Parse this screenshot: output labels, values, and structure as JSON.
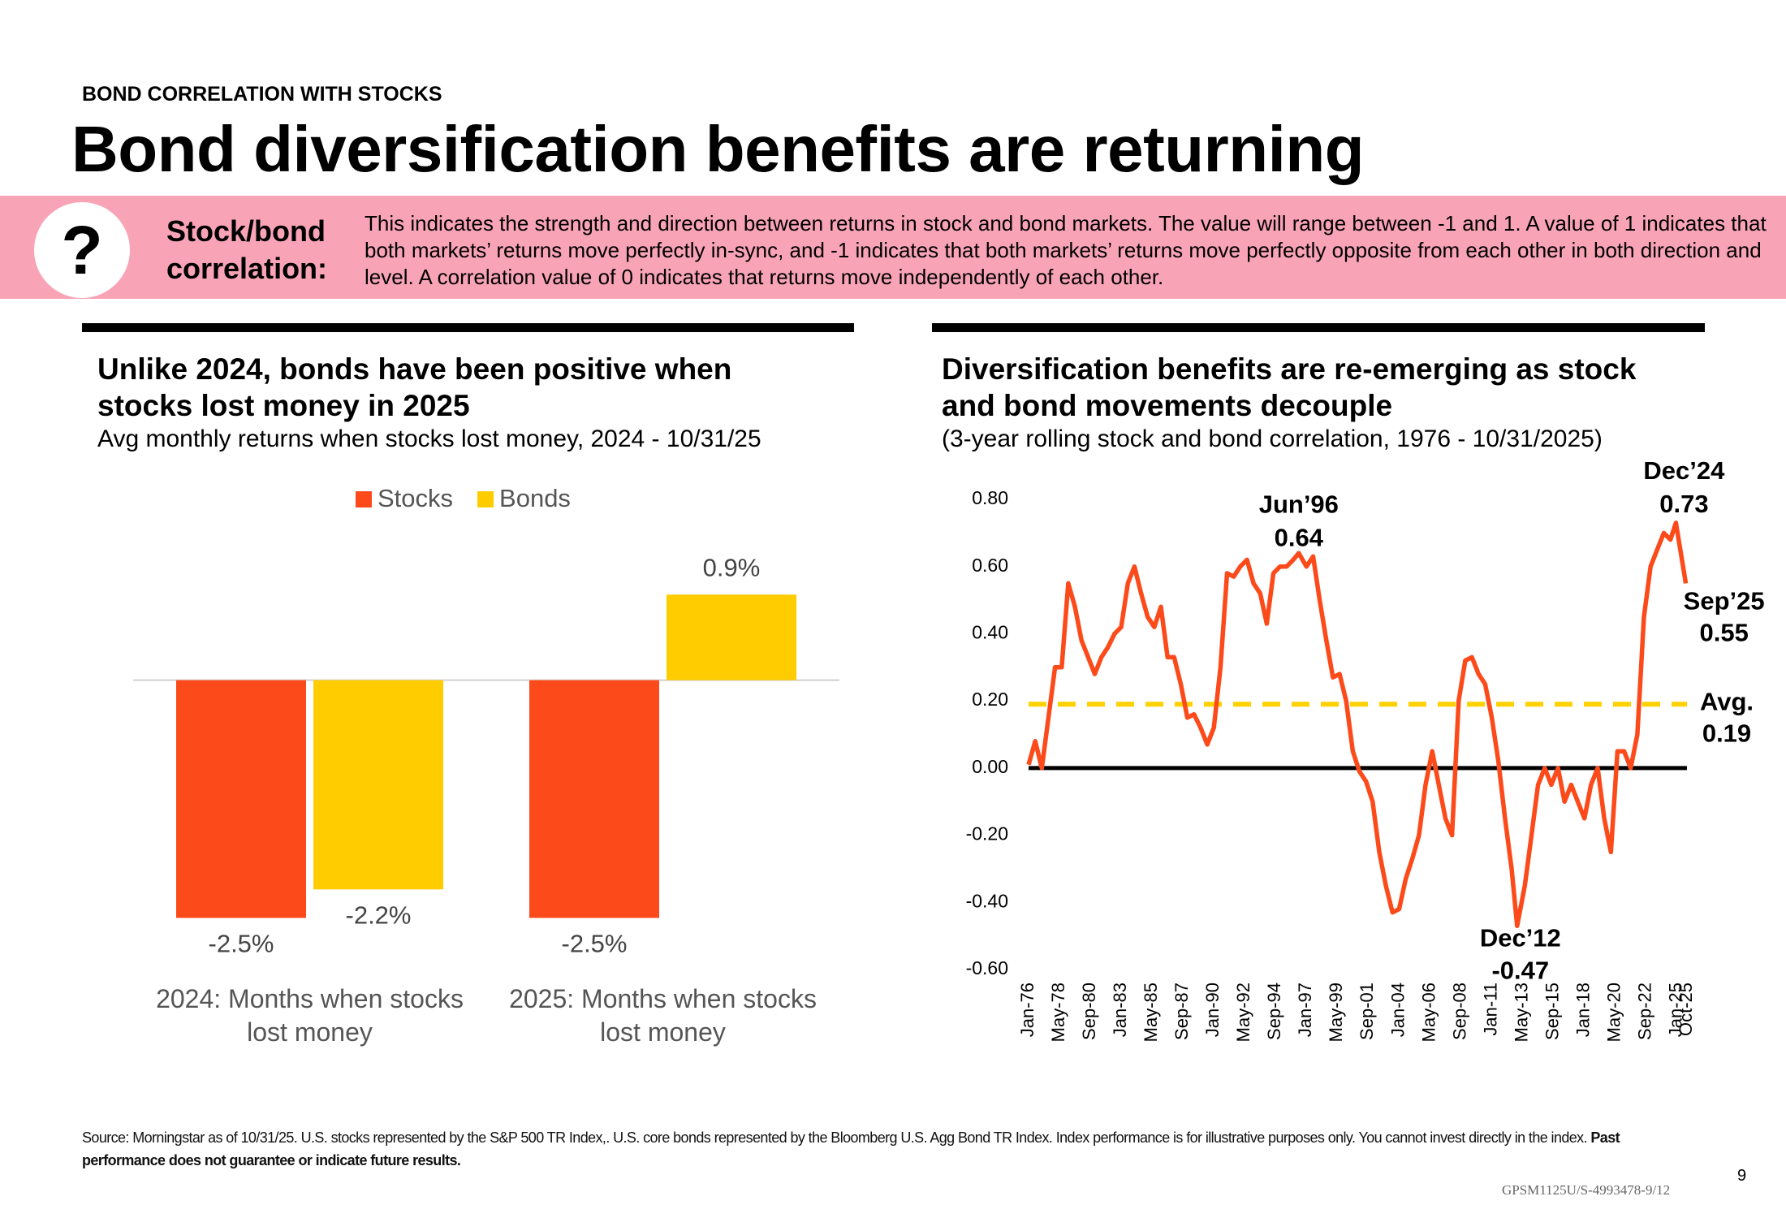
{
  "header": {
    "kicker": "BOND CORRELATION WITH STOCKS",
    "title": "Bond diversification benefits are returning"
  },
  "callout": {
    "icon": "?",
    "term": "Stock/bond correlation:",
    "text": "This indicates the strength and direction between returns in stock and bond markets. The value will range between -1 and 1. A value of 1 indicates that both markets’ returns move perfectly in-sync, and -1 indicates that both markets’ returns move perfectly opposite from each other in both direction and level. A correlation value of 0 indicates that returns move independently of each other."
  },
  "chart_data": [
    {
      "type": "bar",
      "title": "Unlike 2024, bonds have been positive when stocks lost money in 2025",
      "subtitle": "Avg monthly returns when stocks lost money, 2024 - 10/31/25",
      "categories": [
        "2024: Months when stocks lost money",
        "2025: Months when stocks lost money"
      ],
      "series": [
        {
          "name": "Stocks",
          "color": "#fc4a1a",
          "values": [
            -2.5,
            -2.5
          ],
          "value_labels": [
            "-2.5%",
            "-2.5%"
          ]
        },
        {
          "name": "Bonds",
          "color": "#ffcc00",
          "values": [
            -2.2,
            0.9
          ],
          "value_labels": [
            "-2.2%",
            "0.9%"
          ]
        }
      ],
      "ylim": [
        -3,
        1.5
      ]
    },
    {
      "type": "line",
      "title": "Diversification benefits are re-emerging as stock and bond movements decouple",
      "subtitle": "(3-year rolling stock and bond correlation, 1976 - 10/31/2025)",
      "color": "#fc4a1a",
      "x": [
        "Jan-76",
        "Jul-76",
        "Jan-77",
        "Jul-77",
        "Jan-78",
        "Jul-78",
        "Jan-79",
        "Jul-79",
        "Jan-80",
        "Jul-80",
        "Jan-81",
        "Jul-81",
        "Jan-82",
        "Jul-82",
        "Jan-83",
        "Jul-83",
        "Jan-84",
        "Jul-84",
        "Jan-85",
        "Jul-85",
        "Jan-86",
        "Jul-86",
        "Jan-87",
        "Jul-87",
        "Jan-88",
        "Jul-88",
        "Jan-89",
        "Jul-89",
        "Jan-90",
        "Jul-90",
        "Jan-91",
        "Jul-91",
        "Jan-92",
        "Jul-92",
        "Jan-93",
        "Jul-93",
        "Jan-94",
        "Jul-94",
        "Jan-95",
        "Jul-95",
        "Jan-96",
        "Jun-96",
        "Jan-97",
        "Jul-97",
        "Jan-98",
        "Jul-98",
        "Jan-99",
        "Jul-99",
        "Jan-00",
        "Jul-00",
        "Jan-01",
        "Jul-01",
        "Jan-02",
        "Jul-02",
        "Jan-03",
        "Jul-03",
        "Jan-04",
        "Jul-04",
        "Jan-05",
        "Jul-05",
        "Jan-06",
        "Jul-06",
        "Jan-07",
        "Jul-07",
        "Jan-08",
        "Jul-08",
        "Jan-09",
        "Jul-09",
        "Jan-10",
        "Jul-10",
        "Jan-11",
        "Jul-11",
        "Jan-12",
        "Jul-12",
        "Dec-12",
        "Jul-13",
        "Jan-14",
        "Jul-14",
        "Jan-15",
        "Jul-15",
        "Jan-16",
        "Jul-16",
        "Jan-17",
        "Jul-17",
        "Jan-18",
        "Jul-18",
        "Jan-19",
        "Jul-19",
        "Jan-20",
        "Jul-20",
        "Jan-21",
        "Jul-21",
        "Jan-22",
        "Jul-22",
        "Jan-23",
        "Jul-23",
        "Jan-24",
        "Jul-24",
        "Dec-24",
        "Sep-25"
      ],
      "values": [
        0.01,
        0.08,
        0.0,
        0.15,
        0.3,
        0.3,
        0.55,
        0.48,
        0.38,
        0.33,
        0.28,
        0.33,
        0.36,
        0.4,
        0.42,
        0.55,
        0.6,
        0.52,
        0.45,
        0.42,
        0.48,
        0.33,
        0.33,
        0.25,
        0.15,
        0.16,
        0.12,
        0.07,
        0.12,
        0.3,
        0.58,
        0.57,
        0.6,
        0.62,
        0.55,
        0.52,
        0.43,
        0.58,
        0.6,
        0.6,
        0.62,
        0.64,
        0.6,
        0.63,
        0.5,
        0.38,
        0.27,
        0.28,
        0.2,
        0.05,
        -0.01,
        -0.04,
        -0.1,
        -0.25,
        -0.35,
        -0.43,
        -0.42,
        -0.33,
        -0.27,
        -0.2,
        -0.05,
        0.05,
        -0.05,
        -0.15,
        -0.2,
        0.2,
        0.32,
        0.33,
        0.28,
        0.25,
        0.15,
        0.02,
        -0.15,
        -0.3,
        -0.47,
        -0.35,
        -0.2,
        -0.05,
        0.0,
        -0.05,
        0.0,
        -0.1,
        -0.05,
        -0.1,
        -0.15,
        -0.05,
        0.0,
        -0.15,
        -0.25,
        0.05,
        0.05,
        0.0,
        0.1,
        0.45,
        0.6,
        0.65,
        0.7,
        0.68,
        0.73,
        0.55
      ],
      "xlim": [
        "Jan-76",
        "Oct-25"
      ],
      "xticks": [
        "Jan-76",
        "May-78",
        "Sep-80",
        "Jan-83",
        "May-85",
        "Sep-87",
        "Jan-90",
        "May-92",
        "Sep-94",
        "Jan-97",
        "May-99",
        "Sep-01",
        "Jan-04",
        "May-06",
        "Sep-08",
        "Jan-11",
        "May-13",
        "Sep-15",
        "Jan-18",
        "May-20",
        "Sep-22",
        "Jan-25",
        "Oct-25"
      ],
      "ylim": [
        -0.6,
        0.8
      ],
      "yticks": [
        {
          "value": 0.8,
          "label": "0.80"
        },
        {
          "value": 0.6,
          "label": "0.60"
        },
        {
          "value": 0.4,
          "label": "0.40"
        },
        {
          "value": 0.2,
          "label": "0.20"
        },
        {
          "value": 0,
          "label": "0.00"
        },
        {
          "value": -0.2,
          "label": "-0.20"
        },
        {
          "value": -0.4,
          "label": "-0.40"
        },
        {
          "value": -0.6,
          "label": "-0.60"
        }
      ],
      "average": {
        "label": "Avg.",
        "value": 0.19,
        "color": "#ffd100"
      },
      "annotations": [
        {
          "x": "Jun-96",
          "label": "Jun’96",
          "value": 0.64
        },
        {
          "x": "Dec-24",
          "label": "Dec’24",
          "value": 0.73
        },
        {
          "x": "Sep-25",
          "label": "Sep’25",
          "value": 0.55
        },
        {
          "x": "Dec-12",
          "label": "Dec’12",
          "value": -0.47
        }
      ]
    }
  ],
  "footer": {
    "source": "Source: Morningstar as of 10/31/25. U.S. stocks represented by the S&P 500 TR Index,. U.S. core bonds represented by the Bloomberg U.S. Agg Bond TR Index. Index performance is for illustrative purposes only. You cannot invest directly in the index.",
    "disclaimer": "Past performance does not guarantee or indicate future results.",
    "page": "9",
    "code": "GPSM1125U/S-4993478-9/12"
  }
}
